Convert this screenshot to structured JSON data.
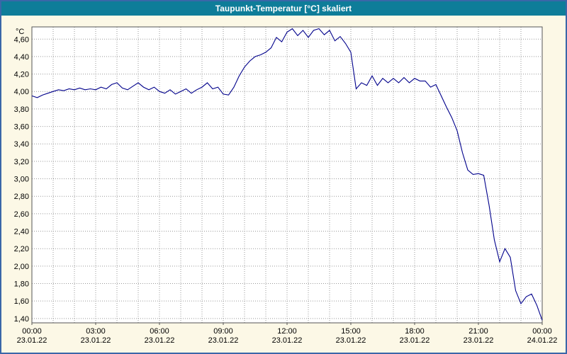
{
  "window": {
    "title": "Taupunkt-Temperatur [°C] skaliert",
    "title_bar_color": "#0e7d99",
    "background_color": "#fcf8e6",
    "frame_color": "#3a67a8"
  },
  "chart_data": {
    "type": "line",
    "title": "Taupunkt-Temperatur [°C] skaliert",
    "xlabel": "",
    "ylabel": "°C",
    "ylim": [
      1.35,
      4.74
    ],
    "xlim_hours": [
      0,
      24
    ],
    "grid": "dotted, vertical every 1 hour, horizontal every 0.2 °C",
    "legend_position": "none",
    "y_ticks": [
      4.6,
      4.4,
      4.2,
      4.0,
      3.8,
      3.6,
      3.4,
      3.2,
      3.0,
      2.8,
      2.6,
      2.4,
      2.2,
      2.0,
      1.8,
      1.6,
      1.4
    ],
    "y_tick_labels": [
      "4,60",
      "4,40",
      "4,20",
      "4,00",
      "3,80",
      "3,60",
      "3,40",
      "3,20",
      "3,00",
      "2,80",
      "2,60",
      "2,40",
      "2,20",
      "2,00",
      "1,80",
      "1,60",
      "1,40"
    ],
    "x_ticks": [
      {
        "h": 0,
        "time": "00:00",
        "date": "23.01.22"
      },
      {
        "h": 3,
        "time": "03:00",
        "date": "23.01.22"
      },
      {
        "h": 6,
        "time": "06:00",
        "date": "23.01.22"
      },
      {
        "h": 9,
        "time": "09:00",
        "date": "23.01.22"
      },
      {
        "h": 12,
        "time": "12:00",
        "date": "23.01.22"
      },
      {
        "h": 15,
        "time": "15:00",
        "date": "23.01.22"
      },
      {
        "h": 18,
        "time": "18:00",
        "date": "23.01.22"
      },
      {
        "h": 21,
        "time": "21:00",
        "date": "23.01.22"
      },
      {
        "h": 24,
        "time": "00:00",
        "date": "24.01.22"
      }
    ],
    "series": [
      {
        "name": "Taupunkt-Temperatur",
        "color": "#00008b",
        "points": [
          [
            0,
            3.95
          ],
          [
            0.25,
            3.93
          ],
          [
            0.5,
            3.96
          ],
          [
            0.75,
            3.98
          ],
          [
            1,
            4.0
          ],
          [
            1.25,
            4.02
          ],
          [
            1.5,
            4.01
          ],
          [
            1.75,
            4.03
          ],
          [
            2,
            4.02
          ],
          [
            2.25,
            4.04
          ],
          [
            2.5,
            4.02
          ],
          [
            2.75,
            4.03
          ],
          [
            3,
            4.02
          ],
          [
            3.25,
            4.05
          ],
          [
            3.5,
            4.03
          ],
          [
            3.75,
            4.08
          ],
          [
            4,
            4.1
          ],
          [
            4.25,
            4.04
          ],
          [
            4.5,
            4.02
          ],
          [
            4.75,
            4.06
          ],
          [
            5,
            4.1
          ],
          [
            5.25,
            4.05
          ],
          [
            5.5,
            4.02
          ],
          [
            5.75,
            4.05
          ],
          [
            6,
            4.0
          ],
          [
            6.25,
            3.98
          ],
          [
            6.5,
            4.02
          ],
          [
            6.75,
            3.97
          ],
          [
            7,
            4.0
          ],
          [
            7.25,
            4.03
          ],
          [
            7.5,
            3.98
          ],
          [
            7.75,
            4.02
          ],
          [
            8,
            4.05
          ],
          [
            8.25,
            4.1
          ],
          [
            8.5,
            4.03
          ],
          [
            8.75,
            4.05
          ],
          [
            9,
            3.97
          ],
          [
            9.25,
            3.96
          ],
          [
            9.5,
            4.05
          ],
          [
            9.75,
            4.18
          ],
          [
            10,
            4.28
          ],
          [
            10.25,
            4.35
          ],
          [
            10.5,
            4.4
          ],
          [
            10.75,
            4.42
          ],
          [
            11,
            4.45
          ],
          [
            11.25,
            4.5
          ],
          [
            11.5,
            4.62
          ],
          [
            11.75,
            4.57
          ],
          [
            12,
            4.68
          ],
          [
            12.25,
            4.72
          ],
          [
            12.5,
            4.64
          ],
          [
            12.75,
            4.7
          ],
          [
            13,
            4.62
          ],
          [
            13.25,
            4.7
          ],
          [
            13.5,
            4.72
          ],
          [
            13.75,
            4.65
          ],
          [
            14,
            4.7
          ],
          [
            14.25,
            4.58
          ],
          [
            14.5,
            4.63
          ],
          [
            14.75,
            4.55
          ],
          [
            15,
            4.45
          ],
          [
            15.25,
            4.03
          ],
          [
            15.5,
            4.1
          ],
          [
            15.75,
            4.07
          ],
          [
            16,
            4.18
          ],
          [
            16.25,
            4.07
          ],
          [
            16.5,
            4.15
          ],
          [
            16.75,
            4.1
          ],
          [
            17,
            4.15
          ],
          [
            17.25,
            4.1
          ],
          [
            17.5,
            4.16
          ],
          [
            17.75,
            4.1
          ],
          [
            18,
            4.15
          ],
          [
            18.25,
            4.12
          ],
          [
            18.5,
            4.12
          ],
          [
            18.75,
            4.05
          ],
          [
            19,
            4.08
          ],
          [
            19.25,
            3.95
          ],
          [
            19.5,
            3.82
          ],
          [
            19.75,
            3.7
          ],
          [
            20,
            3.55
          ],
          [
            20.25,
            3.3
          ],
          [
            20.5,
            3.1
          ],
          [
            20.75,
            3.05
          ],
          [
            21,
            3.06
          ],
          [
            21.25,
            3.04
          ],
          [
            21.5,
            2.7
          ],
          [
            21.75,
            2.3
          ],
          [
            22,
            2.05
          ],
          [
            22.25,
            2.2
          ],
          [
            22.5,
            2.1
          ],
          [
            22.75,
            1.72
          ],
          [
            23,
            1.57
          ],
          [
            23.25,
            1.65
          ],
          [
            23.5,
            1.68
          ],
          [
            23.75,
            1.55
          ],
          [
            24,
            1.38
          ]
        ]
      }
    ],
    "style": {
      "plot_background": "#ffffff",
      "plot_border_color": "#555555",
      "grid_color": "#999999"
    }
  }
}
